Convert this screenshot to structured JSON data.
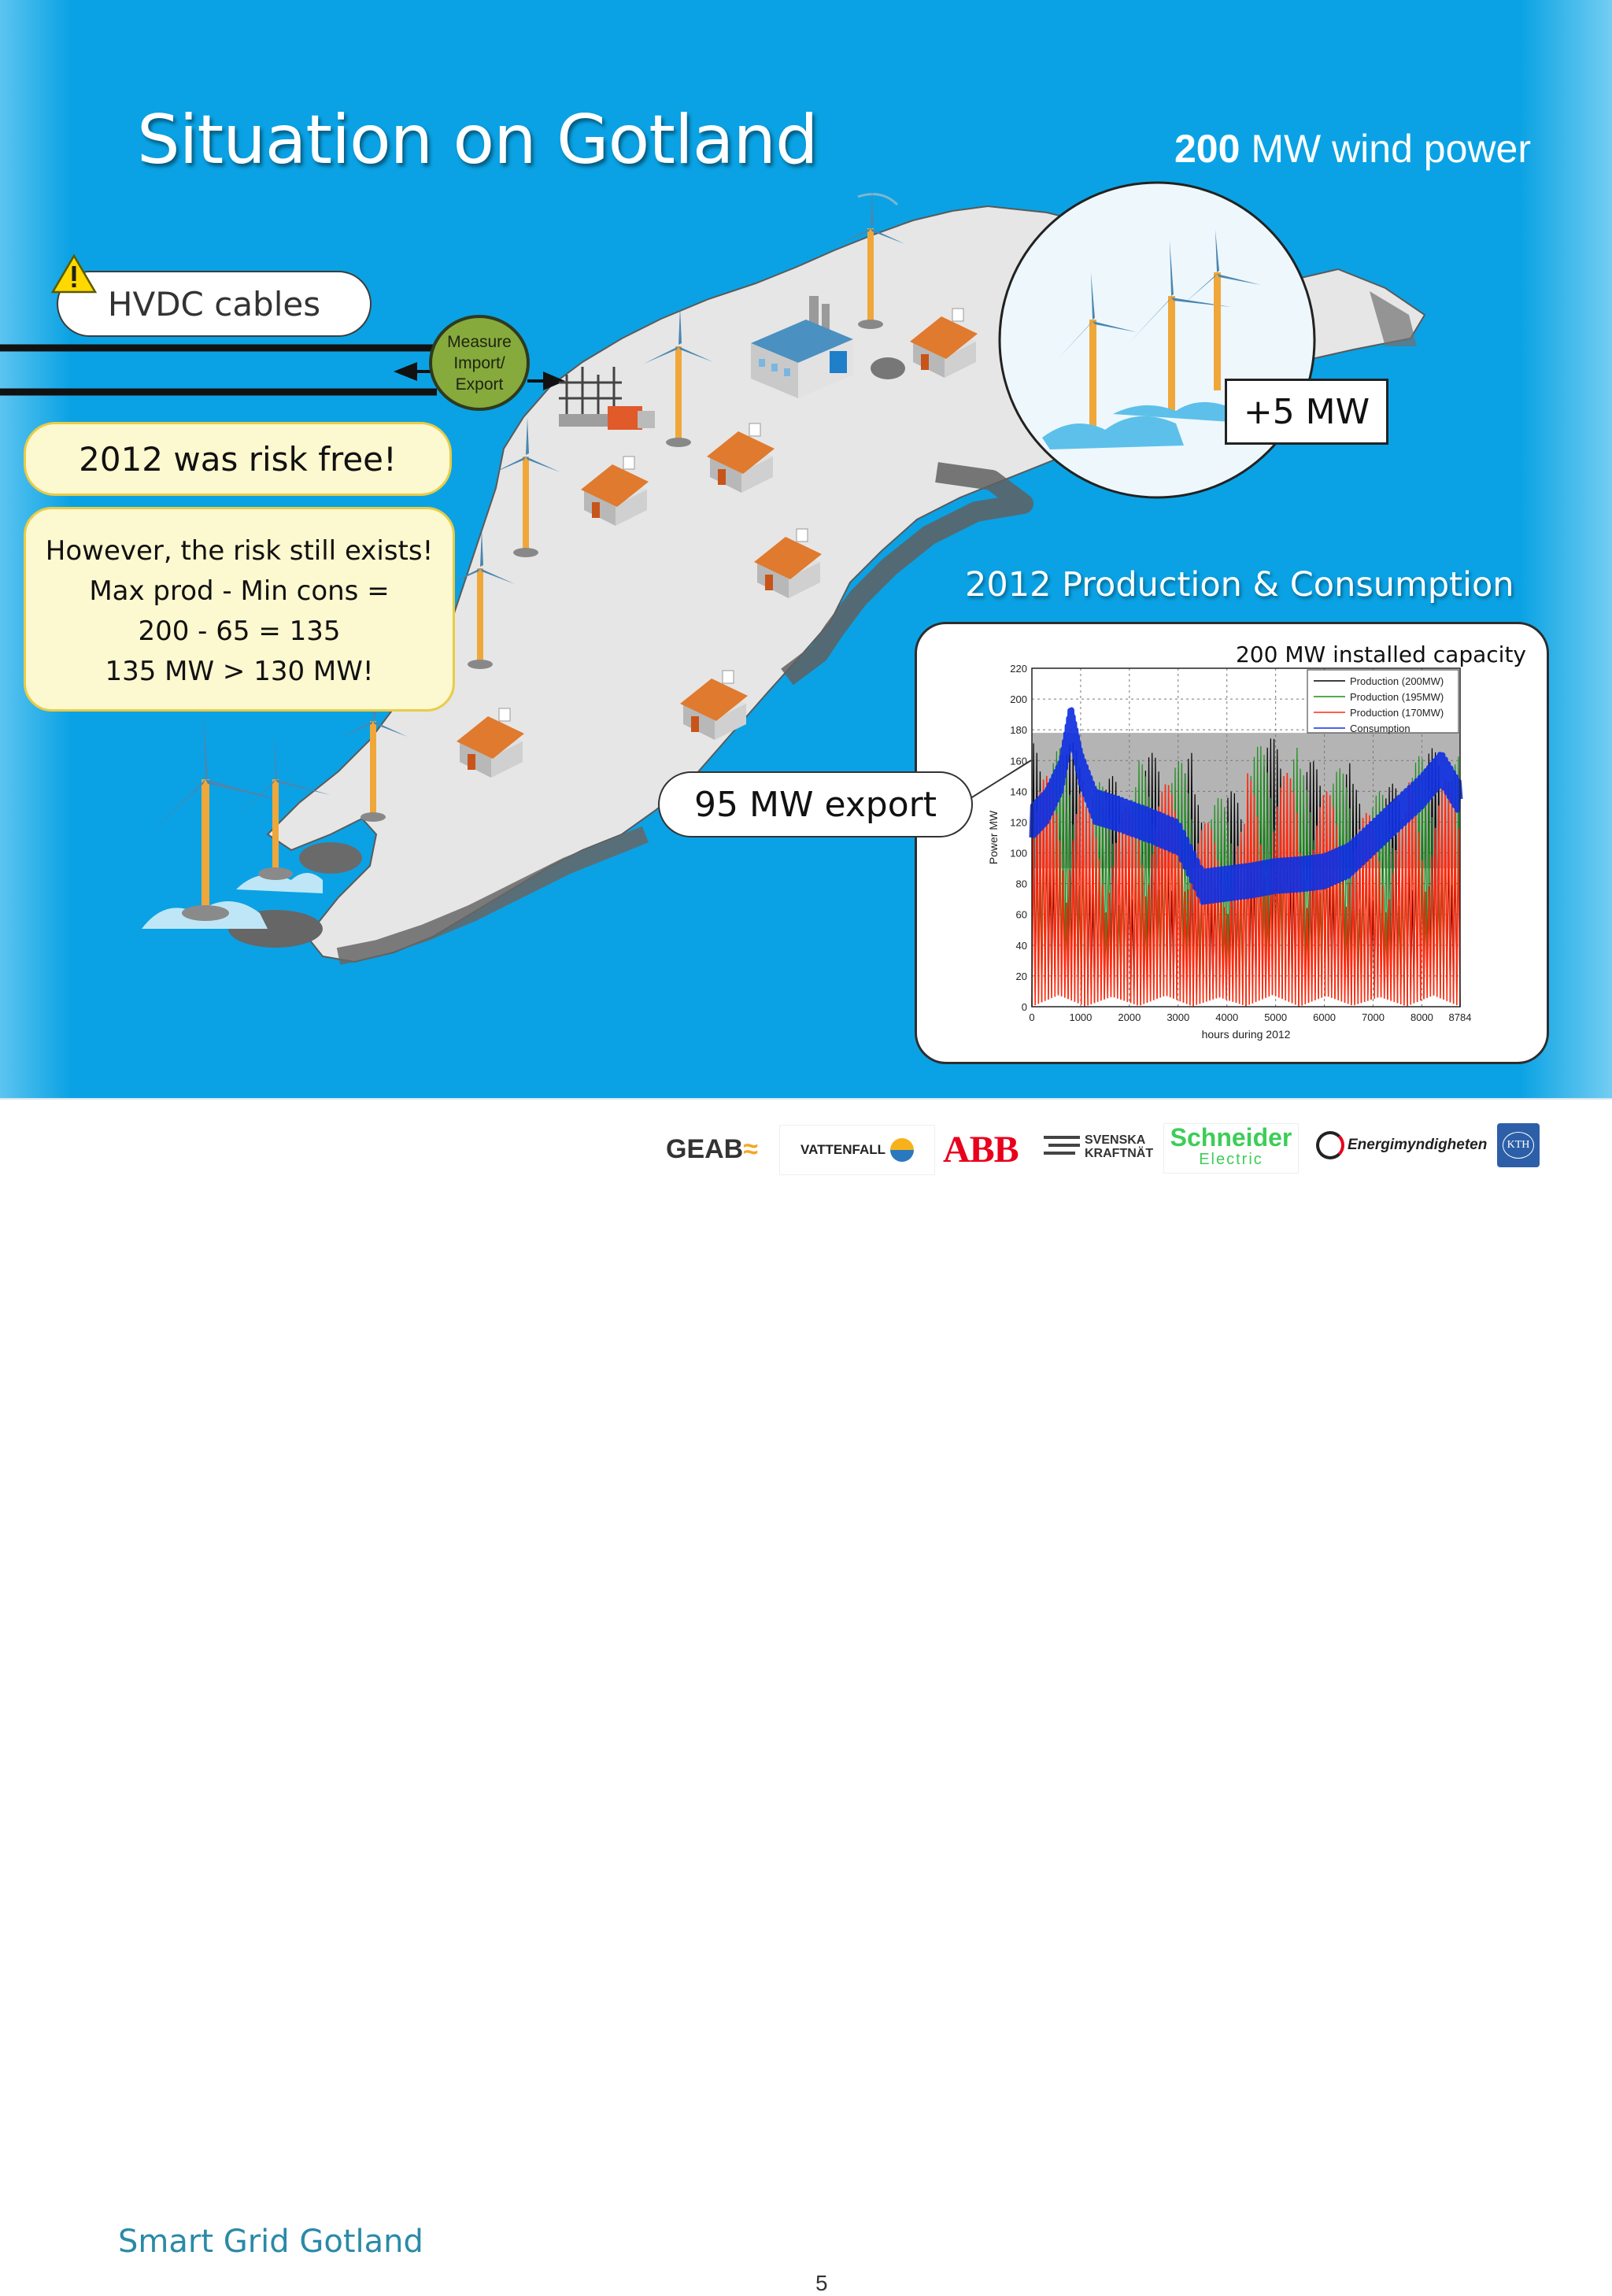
{
  "slide": {
    "title": "Situation on Gotland",
    "wind_power": {
      "bold": "200",
      "rest": " MW wind power"
    },
    "hvdc_label": "HVDC cables",
    "measure_lines": [
      "Measure",
      "Import/",
      "Export"
    ],
    "risk_free": "2012 was risk free!",
    "risk_lines": [
      "However, the risk still exists!",
      "Max prod - Min cons =",
      "200 - 65 = 135",
      "135 MW > 130 MW!"
    ],
    "plus_mw": "+5 MW",
    "export_label": "95 MW export",
    "chart_heading": "2012 Production & Consumption"
  },
  "chart_data": {
    "type": "line",
    "title": "200 MW installed capacity",
    "xlabel": "hours during 2012",
    "ylabel": "Power MW",
    "xlim": [
      0,
      8784
    ],
    "ylim": [
      0,
      220
    ],
    "xticks": [
      "0",
      "1000",
      "2000",
      "3000",
      "4000",
      "5000",
      "6000",
      "7000",
      "8000",
      "8784"
    ],
    "yticks": [
      "0",
      "20",
      "40",
      "60",
      "80",
      "100",
      "120",
      "140",
      "160",
      "180",
      "200",
      "220"
    ],
    "grid": true,
    "legend_position": "top-right",
    "shaded_band": [
      90,
      178
    ],
    "series": [
      {
        "name": "Production (200MW)",
        "color": "#000000",
        "values": [
          0,
          172,
          3,
          150,
          10,
          165,
          5,
          140,
          8,
          175,
          2,
          160,
          12,
          145,
          4,
          168,
          0
        ]
      },
      {
        "name": "Production (195MW)",
        "color": "#1a8f1a",
        "values": [
          2,
          168,
          5,
          146,
          12,
          160,
          6,
          136,
          10,
          170,
          4,
          155,
          14,
          140,
          6,
          163,
          2
        ]
      },
      {
        "name": "Production (170MW)",
        "color": "#ff2a10",
        "values": [
          1,
          150,
          4,
          130,
          10,
          145,
          5,
          120,
          8,
          152,
          3,
          140,
          12,
          126,
          5,
          147,
          1
        ]
      },
      {
        "name": "Consumption",
        "color": "#1030e0",
        "x": [
          0,
          300,
          600,
          800,
          1000,
          1300,
          1800,
          2400,
          3000,
          3500,
          4000,
          4500,
          5000,
          5500,
          6000,
          6500,
          7000,
          7500,
          8000,
          8400,
          8784
        ],
        "values": [
          120,
          130,
          150,
          185,
          155,
          130,
          125,
          118,
          110,
          78,
          80,
          82,
          85,
          86,
          88,
          95,
          110,
          125,
          140,
          155,
          135
        ]
      }
    ]
  },
  "footer": {
    "brand": "Smart Grid Gotland",
    "page_number": "5",
    "logos": [
      "GEAB",
      "VATTENFALL",
      "ABB",
      "SVENSKA",
      "KRAFTNÄT",
      "Schneider",
      "Electric",
      "Energimyndigheten",
      "KTH"
    ]
  },
  "colors": {
    "sea": "#0aa2e4",
    "land": "#e4e4e4",
    "callout_fill": "#fcf8cf",
    "callout_border": "#e9cc46",
    "measure_green": "#86aa3c"
  },
  "icons": [
    "warning-icon",
    "wind-turbine-icon",
    "house-icon",
    "factory-icon",
    "substation-icon",
    "abb-logo",
    "schneider-logo",
    "kth-logo"
  ]
}
